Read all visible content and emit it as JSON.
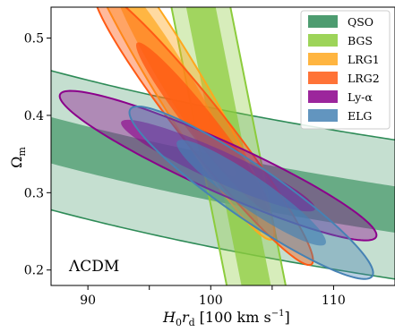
{
  "chart_data": {
    "type": "contour",
    "xlabel_main": "H",
    "xlabel_sub0": "0",
    "xlabel_mid": "r",
    "xlabel_subd": "d",
    "xlabel_units": "[100 km s",
    "xlabel_exp": "−1",
    "xlabel_close": "]",
    "ylabel_main": "Ω",
    "ylabel_sub": "m",
    "xlim": [
      87,
      115
    ],
    "ylim": [
      0.18,
      0.54
    ],
    "xticks": [
      90,
      95,
      100,
      105,
      110
    ],
    "xtick_labels": [
      "90",
      "",
      "100",
      "",
      "110"
    ],
    "yticks": [
      0.2,
      0.3,
      0.4,
      0.5
    ],
    "ytick_labels": [
      "0.2",
      "0.3",
      "0.4",
      "0.5"
    ],
    "annotation": "ΛCDM",
    "legend_position": "top-right",
    "series": [
      {
        "name": "QSO",
        "color": "#2e8b57",
        "kind": "band",
        "c68": 32.0,
        "w68": 0.03,
        "c95": 32.0,
        "w95": 0.09
      },
      {
        "name": "BGS",
        "color": "#8ccc3c",
        "kind": "band_steep",
        "center": [
          101.2,
          0.38
        ],
        "slope_x_per_y": -12.5,
        "hw68": 1.2,
        "hw95": 2.4
      },
      {
        "name": "LRG1",
        "color": "#ffa81e",
        "kind": "ellipse",
        "center": [
          97.0,
          0.45
        ],
        "sigma_x": 3.3,
        "sigma_y": 0.085,
        "rho": -0.96
      },
      {
        "name": "LRG2",
        "color": "#ff5a14",
        "kind": "ellipse",
        "center": [
          99.4,
          0.385
        ],
        "sigma_x": 3.6,
        "sigma_y": 0.072,
        "rho": -0.965
      },
      {
        "name": "Ly-α",
        "color": "#8b008b",
        "kind": "ellipse",
        "center": [
          100.6,
          0.335
        ],
        "sigma_x": 5.2,
        "sigma_y": 0.039,
        "rho": -0.93
      },
      {
        "name": "ELG",
        "color": "#4682b4",
        "kind": "ellipse",
        "center": [
          103.3,
          0.3
        ],
        "sigma_x": 4.0,
        "sigma_y": 0.045,
        "rho": -0.93
      }
    ]
  }
}
